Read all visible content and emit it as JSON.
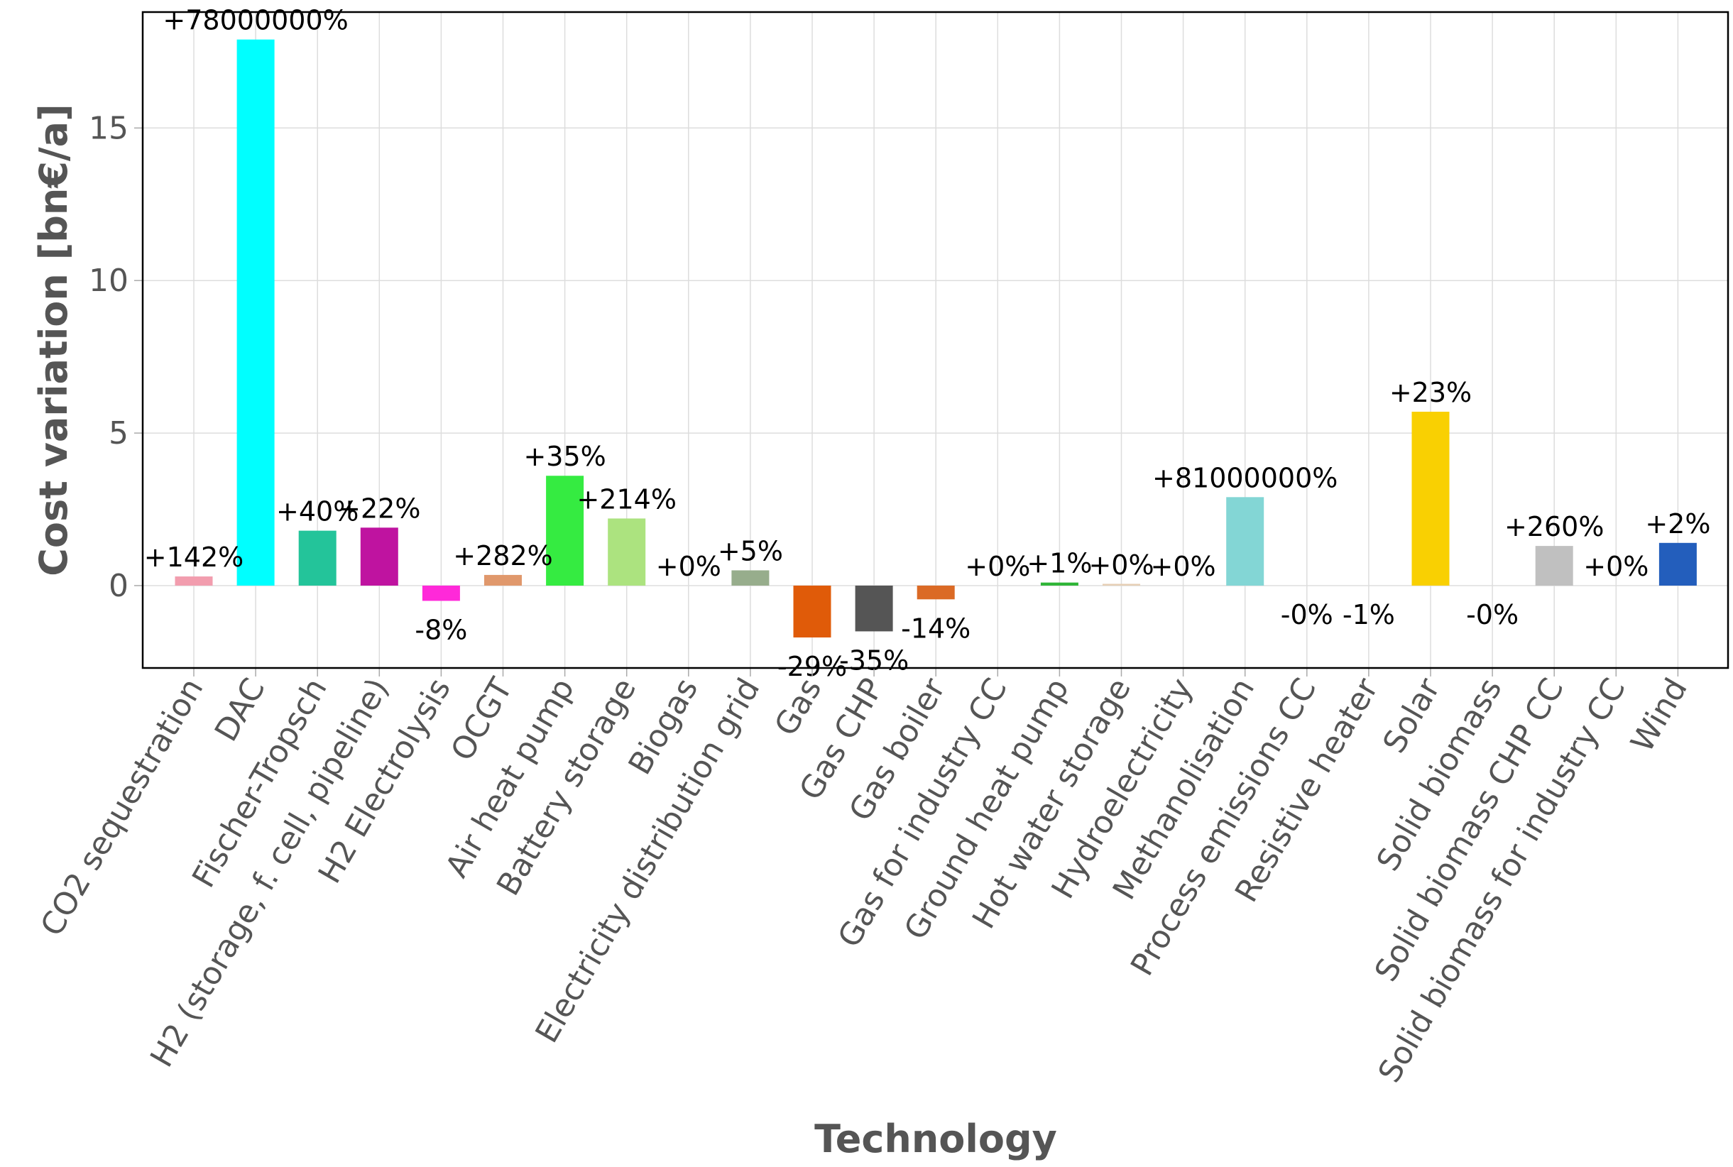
{
  "chart_data": {
    "type": "bar",
    "title": "",
    "xlabel": "Technology",
    "ylabel": "Cost variation [bn€/a]",
    "ylim": [
      -2.7,
      18.8
    ],
    "yticks": [
      0,
      5,
      10,
      15
    ],
    "grid": true,
    "legend": "none",
    "categories": [
      "CO2 sequestration",
      "DAC",
      "Fischer-Tropsch",
      "H2 (storage, f. cell, pipeline)",
      "H2 Electrolysis",
      "OCGT",
      "Air heat pump",
      "Battery storage",
      "Biogas",
      "Electricity distribution grid",
      "Gas",
      "Gas CHP",
      "Gas boiler",
      "Gas for industry CC",
      "Ground heat pump",
      "Hot water storage",
      "Hydroelectricity",
      "Methanolisation",
      "Process emissions CC",
      "Resistive heater",
      "Solar",
      "Solid biomass",
      "Solid biomass CHP CC",
      "Solid biomass for industry CC",
      "Wind"
    ],
    "values": [
      0.3,
      17.9,
      1.8,
      1.9,
      -0.5,
      0.35,
      3.6,
      2.2,
      0.0,
      0.5,
      -1.7,
      -1.5,
      -0.45,
      0.0,
      0.1,
      0.04,
      0.0,
      2.9,
      0.0,
      0.0,
      5.7,
      0.0,
      1.3,
      0.0,
      1.4
    ],
    "labels": [
      "+142%",
      "+78000000%",
      "+40%",
      "+22%",
      "-8%",
      "+282%",
      "+35%",
      "+214%",
      "+0%",
      "+5%",
      "-29%",
      "-35%",
      "-14%",
      "+0%",
      "+1%",
      "+0%",
      "+0%",
      "+81000000%",
      "-0%",
      "-1%",
      "+23%",
      "-0%",
      "+260%",
      "+0%",
      "+2%"
    ],
    "label_position": [
      "above",
      "above",
      "above",
      "above",
      "below",
      "above",
      "above",
      "above",
      "above",
      "above",
      "below",
      "below",
      "below",
      "above",
      "above",
      "above",
      "above",
      "above",
      "below",
      "below",
      "above",
      "below",
      "above",
      "above",
      "above"
    ],
    "colors": [
      "#f29dae",
      "#00ffff",
      "#23c49a",
      "#bf13a0",
      "#ff29d9",
      "#e0986c",
      "#35eb41",
      "#ace37f",
      "#23a13d",
      "#97ad8c",
      "#e05b09",
      "#555555",
      "#db6a25",
      "#8a8a8a",
      "#2fb537",
      "#e6cfb5",
      "#298c81",
      "#83d6d5",
      "#888888",
      "#d8f9b8",
      "#f9d002",
      "#baa741",
      "#c0c0c0",
      "#9e9e9e",
      "#235ebc"
    ]
  }
}
